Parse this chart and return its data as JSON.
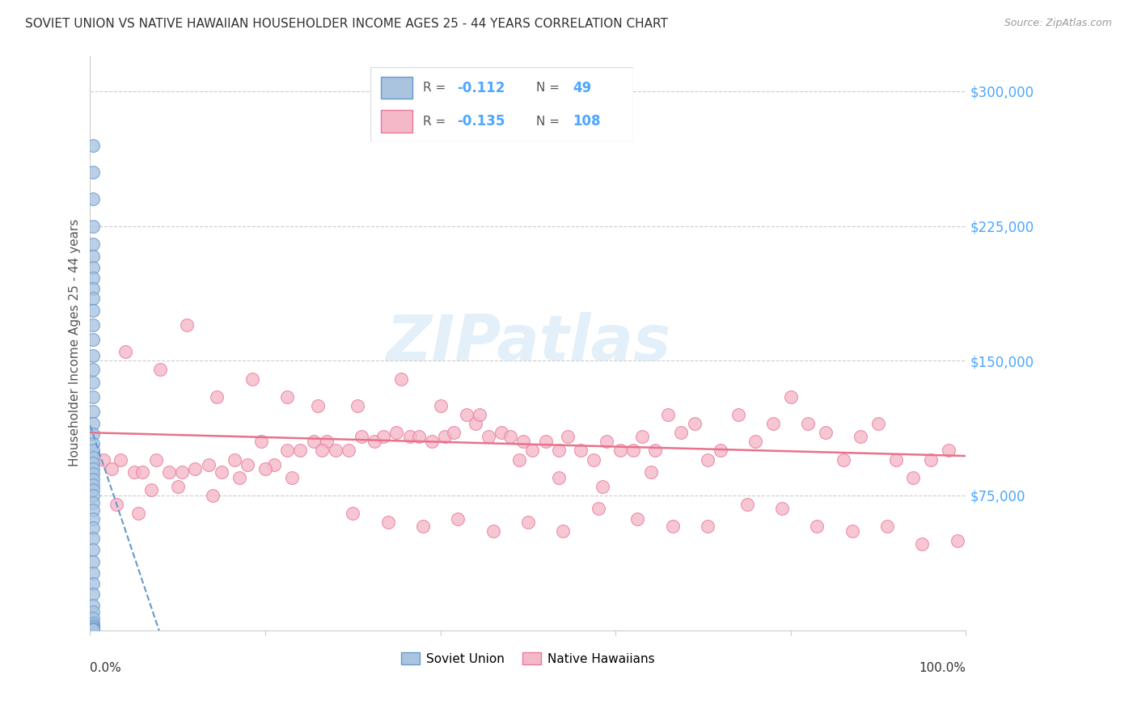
{
  "title": "SOVIET UNION VS NATIVE HAWAIIAN HOUSEHOLDER INCOME AGES 25 - 44 YEARS CORRELATION CHART",
  "source": "Source: ZipAtlas.com",
  "ylabel": "Householder Income Ages 25 - 44 years",
  "y_ticks": [
    75000,
    150000,
    225000,
    300000
  ],
  "y_tick_labels": [
    "$75,000",
    "$150,000",
    "$225,000",
    "$300,000"
  ],
  "y_min": 0,
  "y_max": 320000,
  "x_min": 0,
  "x_max": 100,
  "soviet_color": "#aac4e0",
  "soviet_edge": "#6699cc",
  "native_color": "#f5b8c8",
  "native_edge": "#e87a9a",
  "trend_soviet_color": "#6699cc",
  "trend_native_color": "#e8728a",
  "tick_color": "#4da6ff",
  "watermark": "ZIPatlas",
  "legend_label_soviet": "Soviet Union",
  "legend_label_native": "Native Hawaiians",
  "legend_R_soviet": "-0.112",
  "legend_N_soviet": "49",
  "legend_R_native": "-0.135",
  "legend_N_native": "108",
  "soviet_union_x": [
    0.3,
    0.3,
    0.3,
    0.3,
    0.3,
    0.3,
    0.3,
    0.3,
    0.3,
    0.3,
    0.3,
    0.3,
    0.3,
    0.3,
    0.3,
    0.3,
    0.3,
    0.3,
    0.3,
    0.3,
    0.3,
    0.3,
    0.3,
    0.3,
    0.3,
    0.3,
    0.3,
    0.3,
    0.3,
    0.3,
    0.3,
    0.3,
    0.3,
    0.3,
    0.3,
    0.3,
    0.3,
    0.3,
    0.3,
    0.3,
    0.3,
    0.3,
    0.3,
    0.3,
    0.3,
    0.3,
    0.3,
    0.3,
    0.3
  ],
  "soviet_union_y": [
    270000,
    255000,
    240000,
    225000,
    215000,
    208000,
    202000,
    196000,
    190000,
    185000,
    178000,
    170000,
    162000,
    153000,
    145000,
    138000,
    130000,
    122000,
    115000,
    109000,
    104000,
    100000,
    96000,
    93000,
    90000,
    87000,
    84000,
    81000,
    78000,
    75000,
    71000,
    67000,
    62000,
    57000,
    51000,
    45000,
    38000,
    32000,
    26000,
    20000,
    14000,
    10000,
    6500,
    4000,
    2500,
    1500,
    900,
    400,
    100
  ],
  "native_hawaiian_x": [
    1.5,
    2.5,
    3.5,
    5.0,
    6.0,
    7.5,
    9.0,
    10.5,
    12.0,
    13.5,
    15.0,
    16.5,
    18.0,
    19.5,
    21.0,
    22.5,
    24.0,
    25.5,
    27.0,
    28.0,
    29.5,
    31.0,
    32.5,
    33.5,
    35.0,
    36.5,
    37.5,
    39.0,
    40.5,
    41.5,
    43.0,
    44.0,
    45.5,
    47.0,
    48.0,
    49.5,
    50.5,
    52.0,
    53.5,
    54.5,
    56.0,
    57.5,
    59.0,
    60.5,
    62.0,
    63.0,
    64.5,
    66.0,
    67.5,
    69.0,
    70.5,
    72.0,
    74.0,
    76.0,
    78.0,
    80.0,
    82.0,
    84.0,
    86.0,
    88.0,
    90.0,
    92.0,
    94.0,
    96.0,
    98.0,
    3.0,
    5.5,
    7.0,
    10.0,
    14.0,
    17.0,
    20.0,
    23.0,
    26.5,
    30.0,
    34.0,
    38.0,
    42.0,
    46.0,
    50.0,
    54.0,
    58.0,
    62.5,
    66.5,
    70.5,
    75.0,
    79.0,
    83.0,
    87.0,
    91.0,
    95.0,
    99.0,
    4.0,
    8.0,
    11.0,
    14.5,
    18.5,
    22.5,
    26.0,
    30.5,
    35.5,
    40.0,
    44.5,
    49.0,
    53.5,
    58.5,
    64.0
  ],
  "native_hawaiian_y": [
    95000,
    90000,
    95000,
    88000,
    88000,
    95000,
    88000,
    88000,
    90000,
    92000,
    88000,
    95000,
    92000,
    105000,
    92000,
    100000,
    100000,
    105000,
    105000,
    100000,
    100000,
    108000,
    105000,
    108000,
    110000,
    108000,
    108000,
    105000,
    108000,
    110000,
    120000,
    115000,
    108000,
    110000,
    108000,
    105000,
    100000,
    105000,
    100000,
    108000,
    100000,
    95000,
    105000,
    100000,
    100000,
    108000,
    100000,
    120000,
    110000,
    115000,
    95000,
    100000,
    120000,
    105000,
    115000,
    130000,
    115000,
    110000,
    95000,
    108000,
    115000,
    95000,
    85000,
    95000,
    100000,
    70000,
    65000,
    78000,
    80000,
    75000,
    85000,
    90000,
    85000,
    100000,
    65000,
    60000,
    58000,
    62000,
    55000,
    60000,
    55000,
    68000,
    62000,
    58000,
    58000,
    70000,
    68000,
    58000,
    55000,
    58000,
    48000,
    50000,
    155000,
    145000,
    170000,
    130000,
    140000,
    130000,
    125000,
    125000,
    140000,
    125000,
    120000,
    95000,
    85000,
    80000,
    88000
  ]
}
